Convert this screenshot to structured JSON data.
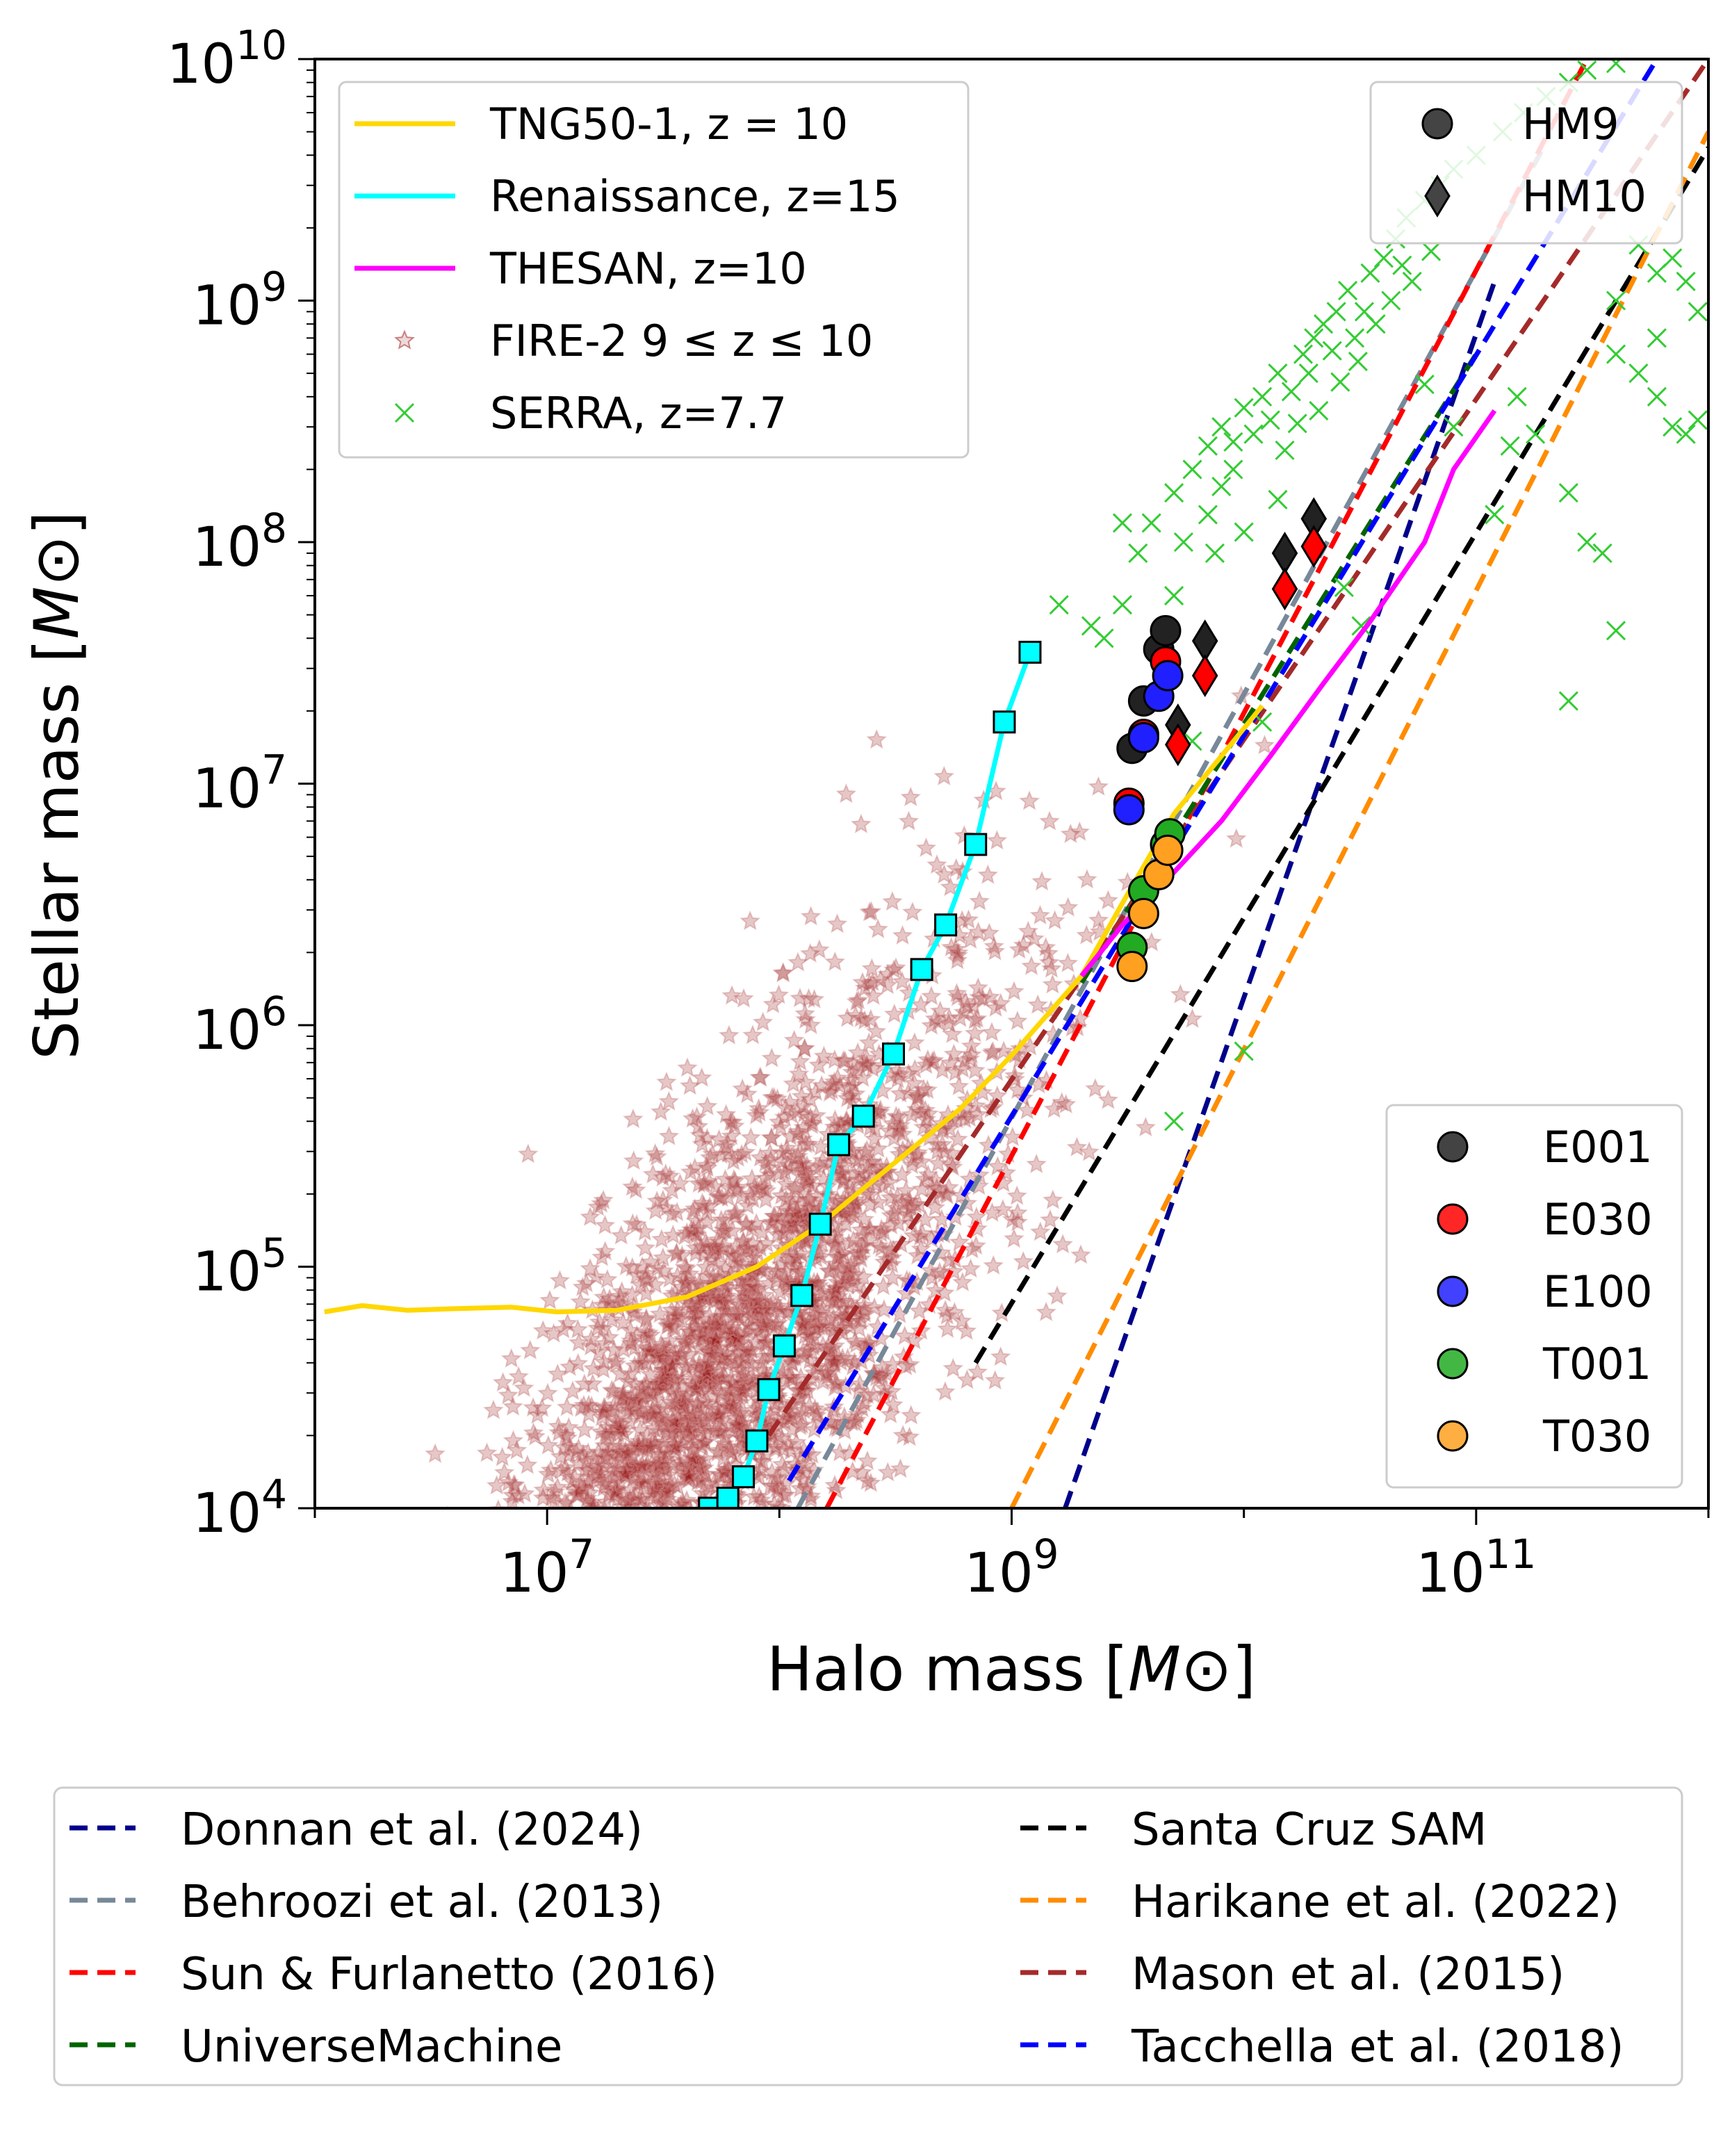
{
  "chart_data": {
    "type": "scatter",
    "xlabel": "Halo mass",
    "ylabel": "Stellar mass",
    "unit": "M⊙",
    "x_scale": "log",
    "y_scale": "log",
    "xlim": [
      1000000.0,
      1000000000000.0
    ],
    "ylim": [
      10000.0,
      10000000000.0
    ],
    "x_ticks": [
      {
        "value": 10000000.0,
        "base": "10",
        "exp": "7"
      },
      {
        "value": 1000000000.0,
        "base": "10",
        "exp": "9"
      },
      {
        "value": 100000000000.0,
        "base": "10",
        "exp": "11"
      }
    ],
    "y_ticks": [
      {
        "value": 10000.0,
        "base": "10",
        "exp": "4"
      },
      {
        "value": 100000.0,
        "base": "10",
        "exp": "5"
      },
      {
        "value": 1000000.0,
        "base": "10",
        "exp": "6"
      },
      {
        "value": 10000000.0,
        "base": "10",
        "exp": "7"
      },
      {
        "value": 100000000.0,
        "base": "10",
        "exp": "8"
      },
      {
        "value": 1000000000.0,
        "base": "10",
        "exp": "9"
      },
      {
        "value": 10000000000.0,
        "base": "10",
        "exp": "10"
      }
    ],
    "sim_series": [
      {
        "name": "TNG50-1, z = 10",
        "color": "#ffd700",
        "style": "line",
        "points": [
          [
            1100000.0,
            65000.0
          ],
          [
            1600000.0,
            69000.0
          ],
          [
            2500000.0,
            66000.0
          ],
          [
            4000000.0,
            67000.0
          ],
          [
            7000000.0,
            68000.0
          ],
          [
            11000000.0,
            65000.0
          ],
          [
            20000000.0,
            66000.0
          ],
          [
            40000000.0,
            75000.0
          ],
          [
            80000000.0,
            100000.0
          ],
          [
            150000000.0,
            150000.0
          ],
          [
            300000000.0,
            260000.0
          ],
          [
            600000000.0,
            450000.0
          ],
          [
            1000000000.0,
            750000.0
          ],
          [
            2000000000.0,
            1600000.0
          ],
          [
            3000000000.0,
            3200000.0
          ],
          [
            5000000000.0,
            7500000.0
          ],
          [
            8000000000.0,
            13000000.0
          ],
          [
            12000000000.0,
            21000000.0
          ]
        ]
      },
      {
        "name": "Renaissance, z=15",
        "color": "#00ffff",
        "style": "line-square",
        "points": [
          [
            50000000.0,
            10000.0
          ],
          [
            60000000.0,
            11000.0
          ],
          [
            70000000.0,
            13500.0
          ],
          [
            80000000.0,
            19000.0
          ],
          [
            90000000.0,
            31000.0
          ],
          [
            105000000.0,
            47000.0
          ],
          [
            125000000.0,
            76000.0
          ],
          [
            150000000.0,
            150000.0
          ],
          [
            180000000.0,
            320000.0
          ],
          [
            230000000.0,
            420000.0
          ],
          [
            310000000.0,
            760000.0
          ],
          [
            410000000.0,
            1700000.0
          ],
          [
            520000000.0,
            2600000.0
          ],
          [
            700000000.0,
            5600000.0
          ],
          [
            930000000.0,
            18000000.0
          ],
          [
            1200000000.0,
            35000000.0
          ]
        ]
      },
      {
        "name": "THESAN, z=10",
        "color": "#ff00ff",
        "style": "line",
        "points": [
          [
            2000000000.0,
            1600000.0
          ],
          [
            3000000000.0,
            2600000.0
          ],
          [
            5000000000.0,
            4300000.0
          ],
          [
            8000000000.0,
            7000000.0
          ],
          [
            13000000000.0,
            13000000.0
          ],
          [
            22000000000.0,
            26000000.0
          ],
          [
            35000000000.0,
            47000000.0
          ],
          [
            60000000000.0,
            100000000.0
          ],
          [
            80000000000.0,
            200000000.0
          ],
          [
            120000000000.0,
            350000000.0
          ]
        ]
      },
      {
        "name": "FIRE-2 9 ≤ z ≤ 10",
        "color": "#c98080",
        "style": "stars"
      },
      {
        "name": "SERRA, z=7.7",
        "color": "#33cc33",
        "style": "crosses"
      }
    ],
    "relations": [
      {
        "name": "Donnan et al. (2024)",
        "color": "#00008b",
        "points": [
          [
            1700000000.0,
            10000.0
          ],
          [
            120000000000.0,
            1200000000.0
          ]
        ]
      },
      {
        "name": "Behroozi et al. (2013)",
        "color": "#778899",
        "points": [
          [
            120000000.0,
            10000.0
          ],
          [
            200000000000.0,
            4500000000.0
          ]
        ]
      },
      {
        "name": "Sun & Furlanetto (2016)",
        "color": "#ff0000",
        "points": [
          [
            160000000.0,
            10000.0
          ],
          [
            300000000000.0,
            10000000000.0
          ]
        ]
      },
      {
        "name": "UniverseMachine",
        "color": "#006400",
        "points": [
          [
            2000000000.0,
            1500000.0
          ],
          [
            100000000000.0,
            600000000.0
          ]
        ]
      },
      {
        "name": "Santa Cruz SAM",
        "color": "#000000",
        "points": [
          [
            700000000.0,
            40000.0
          ],
          [
            1000000000000.0,
            4300000000.0
          ]
        ]
      },
      {
        "name": "Harikane et al. (2022)",
        "color": "#ff8c00",
        "points": [
          [
            1000000000.0,
            10000.0
          ],
          [
            1000000000000.0,
            5000000000.0
          ]
        ]
      },
      {
        "name": "Mason et al. (2015)",
        "color": "#a52a2a",
        "points": [
          [
            90000000.0,
            20000.0
          ],
          [
            1000000000000.0,
            10000000000.0
          ]
        ]
      },
      {
        "name": "Tacchella et al. (2018)",
        "color": "#0000ff",
        "points": [
          [
            110000000.0,
            13000.0
          ],
          [
            600000000000.0,
            10000000000.0
          ]
        ]
      }
    ],
    "this_work": {
      "series_legend": [
        {
          "name": "E001",
          "color": "#222222"
        },
        {
          "name": "E030",
          "color": "#ff0000"
        },
        {
          "name": "E100",
          "color": "#2020ff"
        },
        {
          "name": "T001",
          "color": "#22aa22"
        },
        {
          "name": "T030",
          "color": "#ffa020"
        }
      ],
      "marker_legend": [
        {
          "name": "HM9",
          "marker": "circle"
        },
        {
          "name": "HM10",
          "marker": "diamond"
        }
      ],
      "points": [
        {
          "run": "E001",
          "marker": "circle",
          "x": 3300000000.0,
          "y": 14000000.0
        },
        {
          "run": "E001",
          "marker": "circle",
          "x": 3700000000.0,
          "y": 22000000.0
        },
        {
          "run": "E001",
          "marker": "circle",
          "x": 4300000000.0,
          "y": 36000000.0
        },
        {
          "run": "E001",
          "marker": "circle",
          "x": 4600000000.0,
          "y": 43000000.0
        },
        {
          "run": "E030",
          "marker": "circle",
          "x": 3200000000.0,
          "y": 8300000.0
        },
        {
          "run": "E030",
          "marker": "circle",
          "x": 3700000000.0,
          "y": 16000000.0
        },
        {
          "run": "E030",
          "marker": "circle",
          "x": 4600000000.0,
          "y": 32000000.0
        },
        {
          "run": "E100",
          "marker": "circle",
          "x": 3200000000.0,
          "y": 7800000.0
        },
        {
          "run": "E100",
          "marker": "circle",
          "x": 3700000000.0,
          "y": 15500000.0
        },
        {
          "run": "E100",
          "marker": "circle",
          "x": 4300000000.0,
          "y": 23000000.0
        },
        {
          "run": "E100",
          "marker": "circle",
          "x": 4700000000.0,
          "y": 28000000.0
        },
        {
          "run": "T001",
          "marker": "circle",
          "x": 3300000000.0,
          "y": 2100000.0
        },
        {
          "run": "T001",
          "marker": "circle",
          "x": 3700000000.0,
          "y": 3600000.0
        },
        {
          "run": "T001",
          "marker": "circle",
          "x": 4600000000.0,
          "y": 5600000.0
        },
        {
          "run": "T001",
          "marker": "circle",
          "x": 4800000000.0,
          "y": 6200000.0
        },
        {
          "run": "T030",
          "marker": "circle",
          "x": 3300000000.0,
          "y": 1750000.0
        },
        {
          "run": "T030",
          "marker": "circle",
          "x": 3700000000.0,
          "y": 2900000.0
        },
        {
          "run": "T030",
          "marker": "circle",
          "x": 4300000000.0,
          "y": 4200000.0
        },
        {
          "run": "T030",
          "marker": "circle",
          "x": 4700000000.0,
          "y": 5300000.0
        },
        {
          "run": "E001",
          "marker": "diamond",
          "x": 5200000000.0,
          "y": 17500000.0
        },
        {
          "run": "E001",
          "marker": "diamond",
          "x": 6800000000.0,
          "y": 39000000.0
        },
        {
          "run": "E001",
          "marker": "diamond",
          "x": 15000000000.0,
          "y": 90000000.0
        },
        {
          "run": "E001",
          "marker": "diamond",
          "x": 20000000000.0,
          "y": 125000000.0
        },
        {
          "run": "E030",
          "marker": "diamond",
          "x": 5200000000.0,
          "y": 14500000.0
        },
        {
          "run": "E030",
          "marker": "diamond",
          "x": 6800000000.0,
          "y": 28000000.0
        },
        {
          "run": "E030",
          "marker": "diamond",
          "x": 15000000000.0,
          "y": 64000000.0
        },
        {
          "run": "E030",
          "marker": "diamond",
          "x": 20000000000.0,
          "y": 96000000.0
        }
      ]
    },
    "serra_points": [
      [
        3500000000.0,
        90000000.0
      ],
      [
        4000000000.0,
        120000000.0
      ],
      [
        5000000000.0,
        160000000.0
      ],
      [
        6000000000.0,
        200000000.0
      ],
      [
        7000000000.0,
        250000000.0
      ],
      [
        8000000000.0,
        300000000.0
      ],
      [
        9000000000.0,
        260000000.0
      ],
      [
        10000000000.0,
        360000000.0
      ],
      [
        12000000000.0,
        400000000.0
      ],
      [
        14000000000.0,
        500000000.0
      ],
      [
        16000000000.0,
        420000000.0
      ],
      [
        18000000000.0,
        600000000.0
      ],
      [
        20000000000.0,
        700000000.0
      ],
      [
        22000000000.0,
        800000000.0
      ],
      [
        25000000000.0,
        900000000.0
      ],
      [
        28000000000.0,
        1100000000.0
      ],
      [
        30000000000.0,
        700000000.0
      ],
      [
        35000000000.0,
        1300000000.0
      ],
      [
        40000000000.0,
        1500000000.0
      ],
      [
        45000000000.0,
        1800000000.0
      ],
      [
        50000000000.0,
        2200000000.0
      ],
      [
        60000000000.0,
        2600000000.0
      ],
      [
        70000000000.0,
        3000000000.0
      ],
      [
        80000000000.0,
        3500000000.0
      ],
      [
        100000000000.0,
        4000000000.0
      ],
      [
        130000000000.0,
        5000000000.0
      ],
      [
        160000000000.0,
        6000000000.0
      ],
      [
        200000000000.0,
        7000000000.0
      ],
      [
        250000000000.0,
        8000000000.0
      ],
      [
        300000000000.0,
        9000000000.0
      ],
      [
        400000000000.0,
        9600000000.0
      ],
      [
        15000000000.0,
        240000000.0
      ],
      [
        17000000000.0,
        310000000.0
      ],
      [
        21000000000.0,
        350000000.0
      ],
      [
        26000000000.0,
        460000000.0
      ],
      [
        31000000000.0,
        560000000.0
      ],
      [
        37000000000.0,
        800000000.0
      ],
      [
        43000000000.0,
        1000000000.0
      ],
      [
        53000000000.0,
        1200000000.0
      ],
      [
        64000000000.0,
        1600000000.0
      ],
      [
        9000000000.0,
        200000000.0
      ],
      [
        11000000000.0,
        280000000.0
      ],
      [
        7000000000.0,
        130000000.0
      ],
      [
        5500000000.0,
        100000000.0
      ],
      [
        8000000000.0,
        170000000.0
      ],
      [
        13000000000.0,
        320000000.0
      ],
      [
        19000000000.0,
        500000000.0
      ],
      [
        24000000000.0,
        620000000.0
      ],
      [
        33000000000.0,
        900000000.0
      ],
      [
        48000000000.0,
        1400000000.0
      ],
      [
        2500000000.0,
        40000000.0
      ],
      [
        3000000000.0,
        55000000.0
      ],
      [
        2200000000.0,
        45000000.0
      ],
      [
        1600000000.0,
        55000000.0
      ],
      [
        5000000000.0,
        60000000.0
      ],
      [
        7500000000.0,
        90000000.0
      ],
      [
        10000000000.0,
        110000000.0
      ],
      [
        14000000000.0,
        150000000.0
      ],
      [
        60000000000.0,
        450000000.0
      ],
      [
        80000000000.0,
        300000000.0
      ],
      [
        150000000000.0,
        400000000.0
      ],
      [
        180000000000.0,
        280000000.0
      ],
      [
        250000000000.0,
        160000000.0
      ],
      [
        300000000000.0,
        100000000.0
      ],
      [
        350000000000.0,
        90000000.0
      ],
      [
        400000000000.0,
        43000000.0
      ],
      [
        250000000000.0,
        22000000.0
      ],
      [
        120000000000.0,
        130000000.0
      ],
      [
        140000000000.0,
        250000000.0
      ],
      [
        400000000000.0,
        600000000.0
      ],
      [
        500000000000.0,
        500000000.0
      ],
      [
        600000000000.0,
        700000000.0
      ],
      [
        600000000000.0,
        400000000.0
      ],
      [
        700000000000.0,
        300000000.0
      ],
      [
        800000000000.0,
        280000000.0
      ],
      [
        900000000000.0,
        320000000.0
      ],
      [
        900000000000.0,
        900000000.0
      ],
      [
        800000000000.0,
        1200000000.0
      ],
      [
        700000000000.0,
        1500000000.0
      ],
      [
        600000000000.0,
        1300000000.0
      ],
      [
        500000000000.0,
        1700000000.0
      ],
      [
        400000000000.0,
        1000000000.0
      ],
      [
        12000000000.0,
        18000000.0
      ],
      [
        6000000000.0,
        15000000.0
      ],
      [
        5000000000.0,
        400000.0
      ],
      [
        10000000000.0,
        780000.0
      ],
      [
        3000000000.0,
        120000000.0
      ],
      [
        27000000000.0,
        65000000.0
      ],
      [
        32000000000.0,
        45000000.0
      ]
    ],
    "legend_placement": "upper left (simulations), upper right (HM9/HM10), lower right (runs), below plot (relations)",
    "grid": false
  }
}
